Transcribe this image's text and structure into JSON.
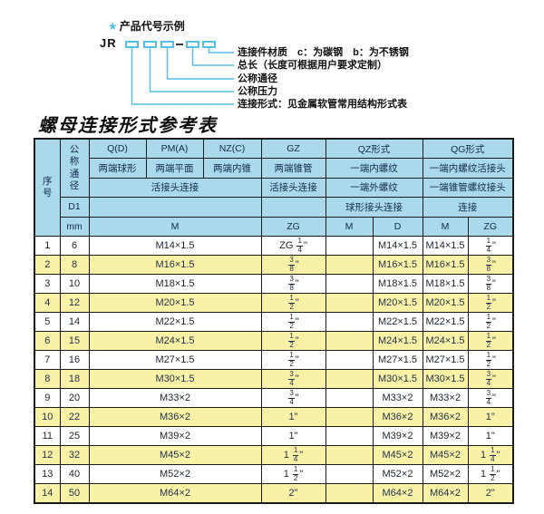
{
  "colors": {
    "header_blue": "#abd9ec",
    "row_yellow": "#f9f1a5",
    "accent_cyan": "#55bfe6",
    "border_dark": "#1b1b1b"
  },
  "diagram": {
    "star": "★",
    "title": "产品代号示例",
    "prefix": "JR",
    "separator": "-",
    "labels": [
      "连接件材质　c：为碳钢　b：为不锈钢",
      "总长（长度可根据用户要求定制）",
      "公称通径",
      "公称压力",
      "连接形式：见金属软管常用结构形式表"
    ]
  },
  "table": {
    "title": "螺母连接形式参考表",
    "header": {
      "serial": "序号",
      "nominal_diameter": "公称通径",
      "d1": "D1",
      "mm": "mm",
      "groups": [
        "Q(D)",
        "PM(A)",
        "NZ(C)",
        "GZ",
        "QZ形式",
        "QG形式"
      ],
      "forms": [
        "两端球形",
        "两端平面",
        "两端内锥",
        "两端锥管",
        "一端内螺纹",
        "一端内螺纹活接头"
      ],
      "connections": [
        "活接头连接",
        "活接头连接",
        "一端外螺纹",
        "一端锥管螺纹接头"
      ],
      "sub_connections": [
        "球形接头连接",
        "连接"
      ],
      "thread_cols": [
        "M",
        "ZG",
        "M",
        "D",
        "M",
        "ZG"
      ]
    },
    "rows": [
      [
        "1",
        "6",
        "M14×1.5",
        "ZG 1/4\"",
        "",
        "M14×1.5",
        "M14×1.5",
        "1/4\""
      ],
      [
        "2",
        "8",
        "M16×1.5",
        "3/8\"",
        "",
        "M16×1.5",
        "M16×1.5",
        "3/8\""
      ],
      [
        "3",
        "10",
        "M18×1.5",
        "3/8\"",
        "",
        "M18×1.5",
        "M18×1.5",
        "3/8\""
      ],
      [
        "4",
        "12",
        "M20×1.5",
        "1/2\"",
        "",
        "M20×1.5",
        "M20×1.5",
        "1/2\""
      ],
      [
        "5",
        "14",
        "M22×1.5",
        "1/2\"",
        "",
        "M22×1.5",
        "M22×1.5",
        "1/2\""
      ],
      [
        "6",
        "15",
        "M24×1.5",
        "1/2\"",
        "",
        "M24×1.5",
        "M24×1.5",
        "1/2\""
      ],
      [
        "7",
        "16",
        "M27×1.5",
        "1/2\"",
        "",
        "M27×1.5",
        "M27×1.5",
        "1/2\""
      ],
      [
        "8",
        "18",
        "M30×1.5",
        "3/4\"",
        "",
        "M30×1.5",
        "M30×1.5",
        "3/4\""
      ],
      [
        "9",
        "20",
        "M33×2",
        "3/4\"",
        "",
        "M33×2",
        "M33×2",
        "3/4\""
      ],
      [
        "10",
        "22",
        "M36×2",
        "1\"",
        "",
        "M36×2",
        "M36×2",
        "1\""
      ],
      [
        "11",
        "25",
        "M39×2",
        "1\"",
        "",
        "M39×2",
        "M39×2",
        "1\""
      ],
      [
        "12",
        "32",
        "M45×2",
        "1 1/4\"",
        "",
        "M45×2",
        "M45×2",
        "1 1/4\""
      ],
      [
        "13",
        "40",
        "M52×2",
        "1 1/2\"",
        "",
        "M52×2",
        "M52×2",
        "1 1/2\""
      ],
      [
        "14",
        "50",
        "M64×2",
        "2\"",
        "",
        "M64×2",
        "M64×2",
        "2\""
      ]
    ]
  }
}
